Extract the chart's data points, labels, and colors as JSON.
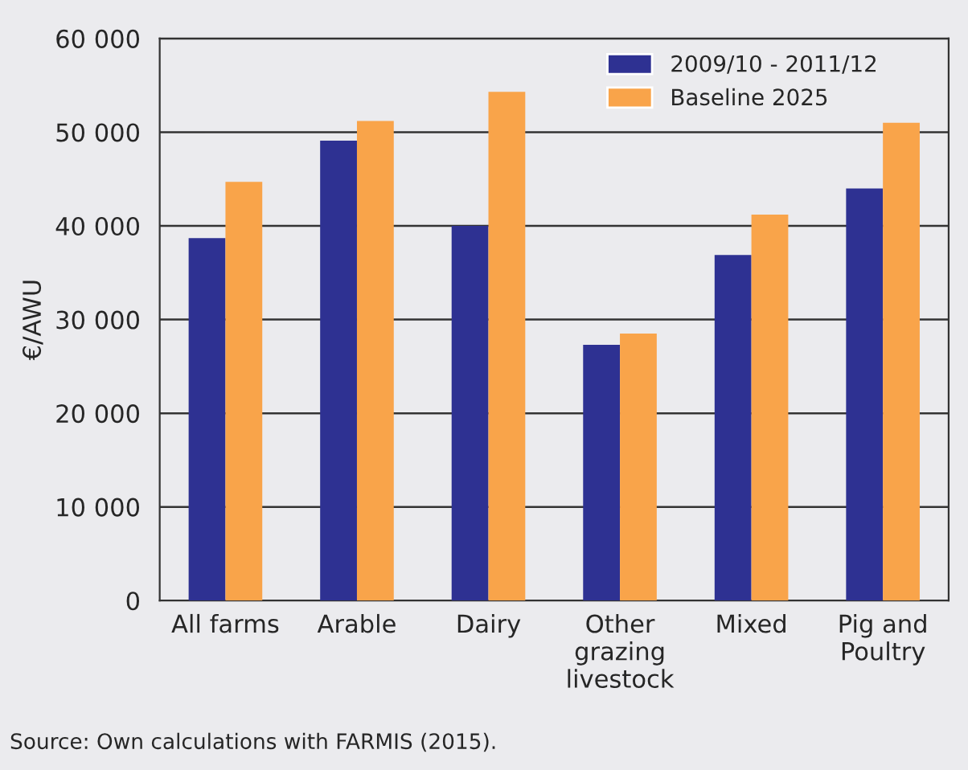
{
  "chart_data": {
    "type": "bar",
    "ylabel": "€/AWU",
    "categories": [
      "All farms",
      "Arable",
      "Dairy",
      "Other\ngrazing\nlivestock",
      "Mixed",
      "Pig and\nPoultry"
    ],
    "series": [
      {
        "name": "2009/10 - 2011/12",
        "color": "#2e3192",
        "values": [
          38700,
          49100,
          40000,
          27300,
          36900,
          44000
        ]
      },
      {
        "name": "Baseline 2025",
        "color": "#f9a44a",
        "values": [
          44700,
          51200,
          54300,
          28500,
          41200,
          51000
        ]
      }
    ],
    "ylim": [
      0,
      60000
    ],
    "yticks": [
      {
        "value": 0,
        "label": "0"
      },
      {
        "value": 10000,
        "label": "10 000"
      },
      {
        "value": 20000,
        "label": "20 000"
      },
      {
        "value": 30000,
        "label": "30 000"
      },
      {
        "value": 40000,
        "label": "40 000"
      },
      {
        "value": 50000,
        "label": "50 000"
      },
      {
        "value": 60000,
        "label": "60 000"
      }
    ],
    "grid": "y",
    "legend": "top right",
    "annotations": [
      "Source: Own calculations with FARMIS (2015)."
    ]
  }
}
